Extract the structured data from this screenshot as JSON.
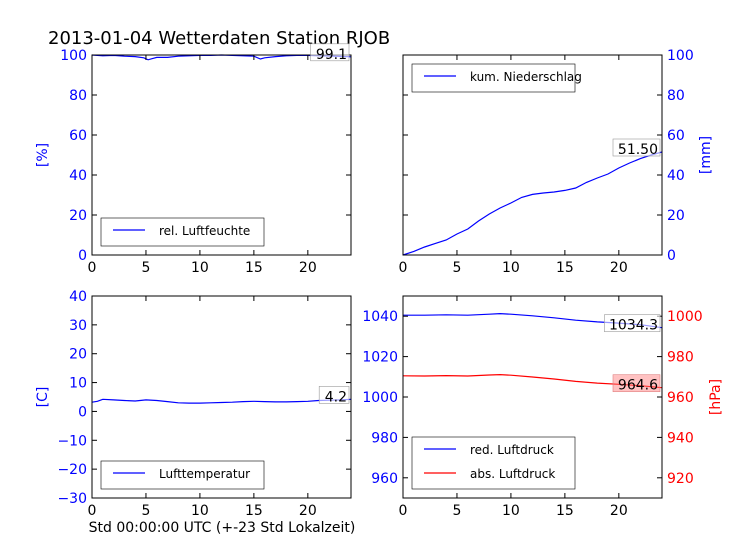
{
  "title": "2013-01-04 Wetterdaten Station RJOB",
  "xlabel": "Std 00:00:00 UTC (+-23 Std Lokalzeit)",
  "chart_data": [
    {
      "id": "humidity",
      "type": "line",
      "xlim": [
        0,
        24
      ],
      "ylim": [
        0,
        100
      ],
      "xticks": [
        "0",
        "5",
        "10",
        "15",
        "20"
      ],
      "yticks": [
        "0",
        "20",
        "40",
        "60",
        "80",
        "100"
      ],
      "ylabel": "[%]",
      "legend": "upper-left",
      "series": [
        {
          "name": "rel. Luftfeuchte",
          "color": "#0000ff",
          "x": [
            0,
            1,
            2,
            3,
            4,
            4.8,
            5.2,
            5.6,
            6,
            7,
            8,
            9,
            10,
            11,
            12,
            13,
            14,
            15,
            15.6,
            16,
            17,
            18,
            19,
            20,
            21,
            22,
            23,
            24
          ],
          "y": [
            100,
            99.6,
            99.8,
            99.4,
            99.2,
            98.6,
            97.6,
            98.2,
            98.8,
            98.8,
            99.4,
            99.6,
            99.8,
            99.8,
            100,
            99.8,
            99.6,
            99.4,
            98,
            98.6,
            99.2,
            99.6,
            99.8,
            99.8,
            99.6,
            99.5,
            99.3,
            99.1
          ]
        }
      ],
      "annotation": {
        "text": "99.1",
        "x": 24,
        "y": 99.1
      }
    },
    {
      "id": "precipitation",
      "type": "line",
      "xlim": [
        0,
        24
      ],
      "ylim": [
        0,
        100
      ],
      "xticks": [
        "0",
        "5",
        "10",
        "15",
        "20"
      ],
      "yticks": [
        "0",
        "20",
        "40",
        "60",
        "80",
        "100"
      ],
      "ylabel": "[mm]",
      "legend": "top-left",
      "series": [
        {
          "name": "kum. Niederschlag",
          "color": "#0000ff",
          "x": [
            0,
            1,
            2,
            3,
            4,
            5,
            6,
            7,
            8,
            9,
            10,
            11,
            12,
            13,
            14,
            15,
            16,
            17,
            18,
            19,
            20,
            21,
            22,
            23,
            24
          ],
          "y": [
            0,
            1.8,
            4,
            5.8,
            7.5,
            10.5,
            13,
            17,
            20.5,
            23.5,
            26,
            28.8,
            30.3,
            31,
            31.5,
            32.3,
            33.5,
            36.3,
            38.5,
            40.5,
            43.5,
            46,
            48.2,
            50,
            51.5
          ]
        }
      ],
      "annotation": {
        "text": "51.50",
        "x": 24,
        "y": 51.5
      }
    },
    {
      "id": "temperature",
      "type": "line",
      "xlim": [
        0,
        24
      ],
      "ylim": [
        -30,
        40
      ],
      "xticks": [
        "0",
        "5",
        "10",
        "15",
        "20"
      ],
      "yticks": [
        "−30",
        "−20",
        "−10",
        "0",
        "10",
        "20",
        "30",
        "40"
      ],
      "ytick_values": [
        -30,
        -20,
        -10,
        0,
        10,
        20,
        30,
        40
      ],
      "ylabel": "[C]",
      "legend": "lower-left",
      "series": [
        {
          "name": "Lufttemperatur",
          "color": "#0000ff",
          "x": [
            0,
            0.5,
            1,
            2,
            3,
            4,
            5,
            6,
            7,
            8,
            9,
            10,
            11,
            12,
            13,
            14,
            15,
            16,
            17,
            18,
            19,
            20,
            21,
            22,
            23,
            24
          ],
          "y": [
            3.2,
            3.5,
            4.2,
            4,
            3.8,
            3.6,
            4,
            3.8,
            3.4,
            3.0,
            2.9,
            2.9,
            3.0,
            3.1,
            3.2,
            3.4,
            3.5,
            3.4,
            3.3,
            3.3,
            3.4,
            3.5,
            3.8,
            3.9,
            4.0,
            4.2
          ]
        }
      ],
      "annotation": {
        "text": "4.2",
        "x": 24,
        "y": 4.2
      }
    },
    {
      "id": "pressure",
      "type": "line",
      "xlim": [
        0,
        24
      ],
      "ylim": [
        950,
        1050
      ],
      "ylim_right": [
        910,
        1010
      ],
      "xticks": [
        "0",
        "5",
        "10",
        "15",
        "20"
      ],
      "yticks": [
        "960",
        "980",
        "1000",
        "1020",
        "1040"
      ],
      "ytick_values": [
        960,
        980,
        1000,
        1020,
        1040
      ],
      "yticks_right": [
        "920",
        "940",
        "960",
        "980",
        "1000"
      ],
      "ytick_values_right": [
        920,
        940,
        960,
        980,
        1000
      ],
      "ylabel_right": "[hPa]",
      "legend": "lower-left",
      "series": [
        {
          "name": "red. Luftdruck",
          "color": "#0000ff",
          "axis": "left",
          "x": [
            0,
            2,
            4,
            6,
            8,
            9,
            10,
            12,
            14,
            16,
            18,
            20,
            22,
            24
          ],
          "y": [
            1040.5,
            1040.5,
            1040.7,
            1040.5,
            1041,
            1041.3,
            1041.0,
            1040.2,
            1039.2,
            1038,
            1037.2,
            1036.6,
            1035.8,
            1034.3
          ]
        },
        {
          "name": "abs. Luftdruck",
          "color": "#ff0000",
          "axis": "right",
          "x": [
            0,
            2,
            4,
            6,
            8,
            9,
            10,
            12,
            14,
            16,
            18,
            20,
            22,
            24
          ],
          "y": [
            970.5,
            970.4,
            970.6,
            970.4,
            970.9,
            971.1,
            970.8,
            969.9,
            968.9,
            967.7,
            966.9,
            966.3,
            965.6,
            964.6
          ]
        }
      ],
      "annotations": [
        {
          "text": "1034.3",
          "x": 24,
          "y": 1034.3,
          "axis": "left"
        },
        {
          "text": "964.6",
          "x": 24,
          "y": 964.6,
          "axis": "right"
        }
      ]
    }
  ]
}
